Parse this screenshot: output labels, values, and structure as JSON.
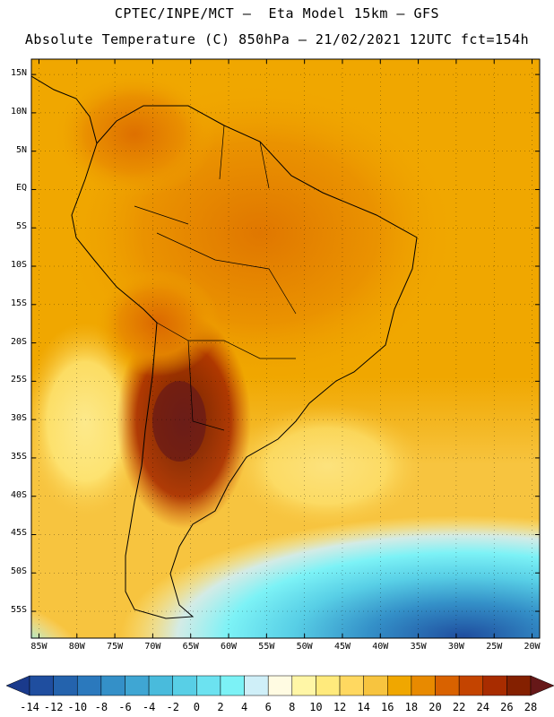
{
  "header": {
    "line1": "CPTEC/INPE/MCT –  Eta Model 15km – GFS",
    "line2": "Absolute Temperature (C) 850hPa – 21/02/2021 12UTC fct=154h"
  },
  "map": {
    "region": "South America",
    "lat_labels": [
      "15N",
      "10N",
      "5N",
      "EQ",
      "5S",
      "10S",
      "15S",
      "20S",
      "25S",
      "30S",
      "35S",
      "40S",
      "45S",
      "50S",
      "55S"
    ],
    "lon_labels": [
      "85W",
      "80W",
      "75W",
      "70W",
      "65W",
      "60W",
      "55W",
      "50W",
      "45W",
      "40W",
      "35W",
      "30W",
      "25W",
      "20W"
    ],
    "lat_values": [
      15,
      10,
      5,
      0,
      -5,
      -10,
      -15,
      -20,
      -25,
      -30,
      -35,
      -40,
      -45,
      -50,
      -55
    ],
    "lon_values": [
      -85,
      -80,
      -75,
      -70,
      -65,
      -60,
      -55,
      -50,
      -45,
      -40,
      -35,
      -30,
      -25,
      -20
    ]
  },
  "colorbar": {
    "labels": [
      "-14",
      "-12",
      "-10",
      "-8",
      "-6",
      "-4",
      "-2",
      "0",
      "2",
      "4",
      "6",
      "8",
      "10",
      "12",
      "14",
      "16",
      "18",
      "20",
      "22",
      "24",
      "26",
      "28"
    ],
    "colors": [
      "#1a3a8c",
      "#1f4e9f",
      "#2463ad",
      "#2b79bd",
      "#3490c8",
      "#3fa6d3",
      "#49bbdc",
      "#58cfe6",
      "#6ce2f0",
      "#7cf2f6",
      "#cfeff8",
      "#fffbe2",
      "#fff6a6",
      "#ffea7c",
      "#ffd860",
      "#f7c43f",
      "#f0a700",
      "#e88a00",
      "#d96200",
      "#c44400",
      "#a82c00",
      "#842000",
      "#661818"
    ]
  }
}
